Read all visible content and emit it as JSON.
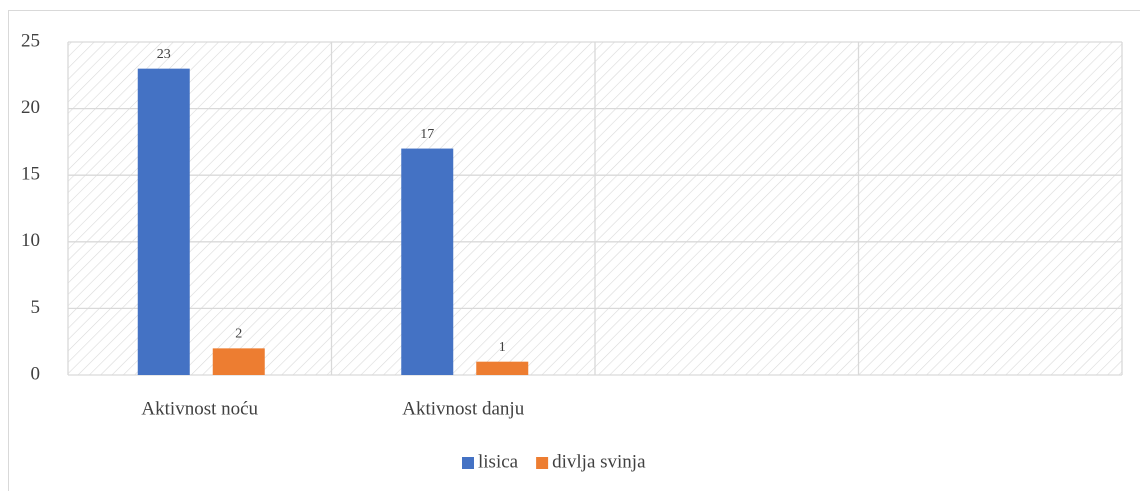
{
  "chart_data": {
    "type": "bar",
    "categories": [
      "Aktivnost noću",
      "Aktivnost danju",
      null,
      null
    ],
    "series": [
      {
        "name": "lisica",
        "color": "#4472c4",
        "values": [
          23,
          17,
          null,
          null
        ]
      },
      {
        "name": "divlja svinja",
        "color": "#ed7d31",
        "values": [
          2,
          1,
          null,
          null
        ]
      }
    ],
    "ylim": [
      0,
      25
    ],
    "yticks": [
      0,
      5,
      10,
      15,
      20,
      25
    ],
    "grid": true,
    "legend": "bottom"
  }
}
